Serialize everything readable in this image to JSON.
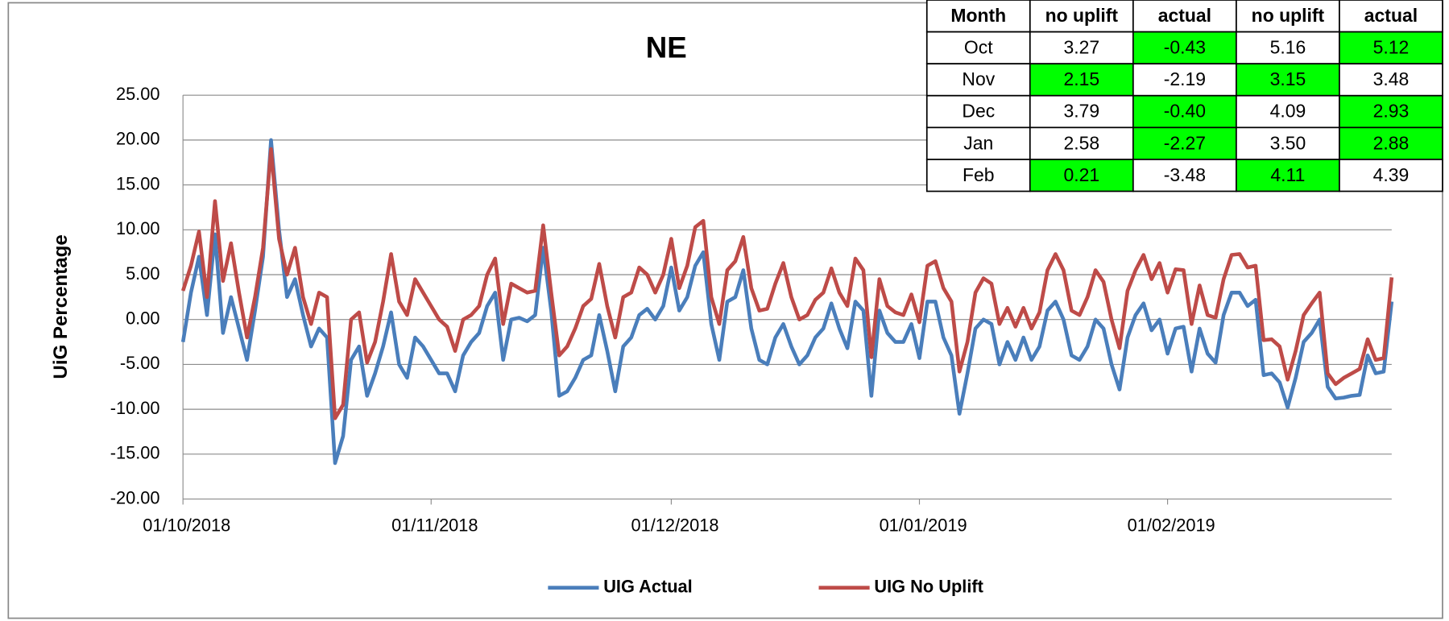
{
  "chart_data": {
    "type": "line",
    "title": "NE",
    "y_label": "UiG Percentage",
    "x": [
      "01/10/2018",
      "02/10/2018",
      "03/10/2018",
      "04/10/2018",
      "05/10/2018",
      "06/10/2018",
      "07/10/2018",
      "08/10/2018",
      "09/10/2018",
      "10/10/2018",
      "11/10/2018",
      "12/10/2018",
      "13/10/2018",
      "14/10/2018",
      "15/10/2018",
      "16/10/2018",
      "17/10/2018",
      "18/10/2018",
      "19/10/2018",
      "20/10/2018",
      "21/10/2018",
      "22/10/2018",
      "23/10/2018",
      "24/10/2018",
      "25/10/2018",
      "26/10/2018",
      "27/10/2018",
      "28/10/2018",
      "29/10/2018",
      "30/10/2018",
      "31/10/2018",
      "01/11/2018",
      "02/11/2018",
      "03/11/2018",
      "04/11/2018",
      "05/11/2018",
      "06/11/2018",
      "07/11/2018",
      "08/11/2018",
      "09/11/2018",
      "10/11/2018",
      "11/11/2018",
      "12/11/2018",
      "13/11/2018",
      "14/11/2018",
      "15/11/2018",
      "16/11/2018",
      "17/11/2018",
      "18/11/2018",
      "19/11/2018",
      "20/11/2018",
      "21/11/2018",
      "22/11/2018",
      "23/11/2018",
      "24/11/2018",
      "25/11/2018",
      "26/11/2018",
      "27/11/2018",
      "28/11/2018",
      "29/11/2018",
      "30/11/2018",
      "01/12/2018",
      "02/12/2018",
      "03/12/2018",
      "04/12/2018",
      "05/12/2018",
      "06/12/2018",
      "07/12/2018",
      "08/12/2018",
      "09/12/2018",
      "10/12/2018",
      "11/12/2018",
      "12/12/2018",
      "13/12/2018",
      "14/12/2018",
      "15/12/2018",
      "16/12/2018",
      "17/12/2018",
      "18/12/2018",
      "19/12/2018",
      "20/12/2018",
      "21/12/2018",
      "22/12/2018",
      "23/12/2018",
      "24/12/2018",
      "25/12/2018",
      "26/12/2018",
      "27/12/2018",
      "28/12/2018",
      "29/12/2018",
      "30/12/2018",
      "31/12/2018",
      "01/01/2019",
      "02/01/2019",
      "03/01/2019",
      "04/01/2019",
      "05/01/2019",
      "06/01/2019",
      "07/01/2019",
      "08/01/2019",
      "09/01/2019",
      "10/01/2019",
      "11/01/2019",
      "12/01/2019",
      "13/01/2019",
      "14/01/2019",
      "15/01/2019",
      "16/01/2019",
      "17/01/2019",
      "18/01/2019",
      "19/01/2019",
      "20/01/2019",
      "21/01/2019",
      "22/01/2019",
      "23/01/2019",
      "24/01/2019",
      "25/01/2019",
      "26/01/2019",
      "27/01/2019",
      "28/01/2019",
      "29/01/2019",
      "30/01/2019",
      "31/01/2019",
      "01/02/2019",
      "02/02/2019",
      "03/02/2019",
      "04/02/2019",
      "05/02/2019",
      "06/02/2019",
      "07/02/2019",
      "08/02/2019",
      "09/02/2019",
      "10/02/2019",
      "11/02/2019",
      "12/02/2019",
      "13/02/2019",
      "14/02/2019",
      "15/02/2019",
      "16/02/2019",
      "17/02/2019",
      "18/02/2019",
      "19/02/2019",
      "20/02/2019",
      "21/02/2019",
      "22/02/2019",
      "23/02/2019",
      "24/02/2019",
      "25/02/2019",
      "26/02/2019",
      "27/02/2019",
      "28/02/2019",
      "01/03/2019"
    ],
    "series": [
      {
        "name": "UIG Actual",
        "color": "#4a7ebb",
        "values": [
          -2.5,
          3,
          7,
          0.5,
          9.5,
          -1.5,
          2.5,
          -1,
          -4.5,
          1,
          7,
          20,
          10,
          2.5,
          4.5,
          0.5,
          -3,
          -1,
          -2,
          -16,
          -13,
          -4.5,
          -3,
          -8.5,
          -6,
          -3,
          0.8,
          -5,
          -6.5,
          -2,
          -3,
          -4.5,
          -6,
          -6,
          -8,
          -4,
          -2.5,
          -1.5,
          1.5,
          3,
          -4.5,
          0,
          0.2,
          -0.2,
          0.5,
          8,
          1,
          -8.5,
          -8,
          -6.5,
          -4.5,
          -4,
          0.5,
          -3.5,
          -8,
          -3,
          -2,
          0.5,
          1.2,
          0,
          1.5,
          5.8,
          1,
          2.5,
          6,
          7.5,
          -0.5,
          -4.5,
          2,
          2.5,
          5.5,
          -1,
          -4.5,
          -5,
          -2,
          -0.5,
          -3,
          -5,
          -4,
          -2,
          -1,
          1.8,
          -1,
          -3.2,
          2,
          1,
          -8.5,
          1,
          -1.5,
          -2.5,
          -2.5,
          -0.5,
          -4.3,
          2,
          2,
          -2,
          -4,
          -10.5,
          -6,
          -1,
          0,
          -0.5,
          -5,
          -2.5,
          -4.5,
          -2,
          -4.5,
          -3,
          1,
          2,
          0,
          -4,
          -4.5,
          -3,
          0,
          -1,
          -5,
          -7.8,
          -2,
          0.5,
          1.8,
          -1.2,
          0,
          -3.8,
          -1,
          -0.8,
          -5.8,
          -1,
          -3.8,
          -4.8,
          0.5,
          3,
          3,
          1.5,
          2.2,
          -6.2,
          -6,
          -7,
          -9.8,
          -6.5,
          -2.5,
          -1.5,
          0,
          -7.5,
          -8.8,
          -8.7,
          -8.5,
          -8.4,
          -4,
          -6,
          -5.8,
          2
        ]
      },
      {
        "name": "UIG No Uplift",
        "color": "#be4b48",
        "values": [
          3.2,
          6,
          9.8,
          2.5,
          13.2,
          4.3,
          8.5,
          3,
          -2,
          2.5,
          8,
          19,
          9,
          5,
          8,
          2.5,
          -0.5,
          3,
          2.5,
          -11,
          -9.5,
          0,
          0.8,
          -4.8,
          -2.5,
          2,
          7.3,
          2,
          0.5,
          4.5,
          3,
          1.5,
          0,
          -0.8,
          -3.5,
          0,
          0.5,
          1.5,
          5,
          6.8,
          -0.5,
          4,
          3.5,
          3,
          3.2,
          10.5,
          3,
          -4,
          -3,
          -1,
          1.5,
          2.3,
          6.2,
          1.5,
          -2,
          2.5,
          3,
          5.8,
          5,
          3,
          5,
          9,
          3.5,
          6,
          10.3,
          11,
          2.5,
          -0.5,
          5.5,
          6.5,
          9.2,
          3.5,
          1,
          1.2,
          4,
          6.3,
          2.5,
          0,
          0.5,
          2.2,
          3,
          5.7,
          3,
          1.5,
          6.8,
          5.5,
          -4.2,
          4.5,
          1.5,
          0.8,
          0.5,
          2.8,
          -0.3,
          6,
          6.5,
          3.5,
          2,
          -5.8,
          -2.5,
          3,
          4.6,
          4,
          -0.5,
          1.3,
          -0.8,
          1.3,
          -1,
          0.8,
          5.5,
          7.3,
          5.5,
          1,
          0.5,
          2.5,
          5.5,
          4.2,
          0,
          -3.2,
          3.2,
          5.5,
          7.2,
          4.5,
          6.3,
          3,
          5.6,
          5.5,
          -0.5,
          3.8,
          0.5,
          0.2,
          4.5,
          7.2,
          7.3,
          5.8,
          6,
          -2.3,
          -2.2,
          -3,
          -6.7,
          -3.5,
          0.5,
          1.8,
          3,
          -6,
          -7.2,
          -6.5,
          -6,
          -5.5,
          -2.2,
          -4.5,
          -4.3,
          4.7
        ]
      }
    ],
    "xlim": [
      "01/10/2018",
      "01/03/2019"
    ],
    "xticks": [
      "01/10/2018",
      "01/11/2018",
      "01/12/2018",
      "01/01/2019",
      "01/02/2019"
    ],
    "ylim": [
      -20,
      25
    ],
    "yticks": [
      {
        "value": -20,
        "label": "-20.00"
      },
      {
        "value": -15,
        "label": "-15.00"
      },
      {
        "value": -10,
        "label": "-10.00"
      },
      {
        "value": -5,
        "label": "-5.00"
      },
      {
        "value": 0,
        "label": "0.00"
      },
      {
        "value": 5,
        "label": "5.00"
      },
      {
        "value": 10,
        "label": "10.00"
      },
      {
        "value": 15,
        "label": "15.00"
      },
      {
        "value": 20,
        "label": "20.00"
      },
      {
        "value": 25,
        "label": "25.00"
      }
    ],
    "grid": true,
    "legend": "bottom"
  },
  "table": {
    "highlight_color": "#00ff00",
    "columns": [
      "Month",
      "no uplift",
      "actual",
      "no uplift",
      "actual"
    ],
    "rows": [
      [
        "Oct",
        "3.27",
        "-0.43",
        "5.16",
        "5.12"
      ],
      [
        "Nov",
        "2.15",
        "-2.19",
        "3.15",
        "3.48"
      ],
      [
        "Dec",
        "3.79",
        "-0.40",
        "4.09",
        "2.93"
      ],
      [
        "Jan",
        "2.58",
        "-2.27",
        "3.50",
        "2.88"
      ],
      [
        "Feb",
        "0.21",
        "-3.48",
        "4.11",
        "4.39"
      ]
    ],
    "highlight": [
      [
        false,
        false,
        true,
        false,
        true
      ],
      [
        false,
        true,
        false,
        true,
        false
      ],
      [
        false,
        false,
        true,
        false,
        true
      ],
      [
        false,
        false,
        true,
        false,
        true
      ],
      [
        false,
        true,
        false,
        true,
        false
      ]
    ]
  }
}
